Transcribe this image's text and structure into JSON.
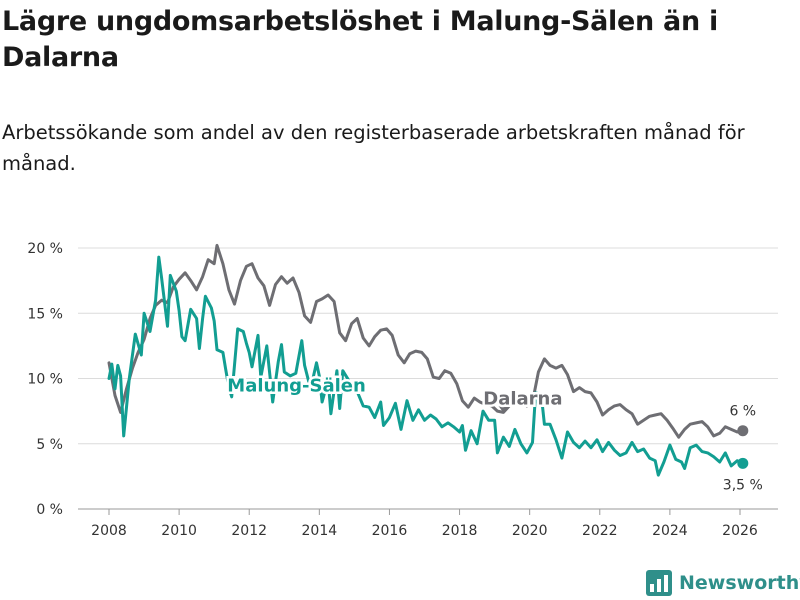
{
  "title": "Lägre ungdomsarbetslöshet i Malung-Sälen än i Dalarna",
  "subtitle": "Arbetssökande som andel av den registerbaserade arbetskraften månad för månad.",
  "brand": {
    "name": "Newsworthy",
    "icon": "bar-chart-icon",
    "color": "#2f8f8a"
  },
  "chart_data": {
    "type": "line",
    "title": "Lägre ungdomsarbetslöshet i Malung-Sälen än i Dalarna",
    "xlabel": "",
    "ylabel": "",
    "xlim": [
      2007.5,
      2027.0
    ],
    "ylim": [
      0,
      20
    ],
    "yticks": [
      0,
      5,
      10,
      15,
      20
    ],
    "ytick_labels": [
      "0 %",
      "5 %",
      "10 %",
      "15 %",
      "20 %"
    ],
    "xticks": [
      2008,
      2010,
      2012,
      2014,
      2016,
      2018,
      2020,
      2022,
      2024,
      2026
    ],
    "xtick_labels": [
      "2008",
      "2010",
      "2012",
      "2014",
      "2016",
      "2018",
      "2020",
      "2022",
      "2024",
      "2026"
    ],
    "grid": true,
    "series": [
      {
        "name": "Dalarna",
        "label": "Dalarna",
        "color": "#6e6e73",
        "end_label": "6 %",
        "points": [
          [
            2008.0,
            11.2
          ],
          [
            2008.17,
            8.7
          ],
          [
            2008.33,
            7.4
          ],
          [
            2008.5,
            9.2
          ],
          [
            2008.67,
            10.8
          ],
          [
            2008.83,
            12.0
          ],
          [
            2009.0,
            13.0
          ],
          [
            2009.17,
            14.6
          ],
          [
            2009.33,
            15.6
          ],
          [
            2009.5,
            16.0
          ],
          [
            2009.67,
            15.8
          ],
          [
            2009.83,
            17.0
          ],
          [
            2010.0,
            17.6
          ],
          [
            2010.17,
            18.1
          ],
          [
            2010.33,
            17.5
          ],
          [
            2010.5,
            16.8
          ],
          [
            2010.67,
            17.8
          ],
          [
            2010.83,
            19.1
          ],
          [
            2011.0,
            18.8
          ],
          [
            2011.08,
            20.2
          ],
          [
            2011.25,
            18.8
          ],
          [
            2011.42,
            16.8
          ],
          [
            2011.58,
            15.7
          ],
          [
            2011.75,
            17.5
          ],
          [
            2011.92,
            18.6
          ],
          [
            2012.08,
            18.8
          ],
          [
            2012.25,
            17.7
          ],
          [
            2012.42,
            17.1
          ],
          [
            2012.58,
            15.6
          ],
          [
            2012.75,
            17.2
          ],
          [
            2012.92,
            17.8
          ],
          [
            2013.08,
            17.3
          ],
          [
            2013.25,
            17.7
          ],
          [
            2013.42,
            16.6
          ],
          [
            2013.58,
            14.8
          ],
          [
            2013.75,
            14.3
          ],
          [
            2013.92,
            15.9
          ],
          [
            2014.08,
            16.1
          ],
          [
            2014.25,
            16.4
          ],
          [
            2014.42,
            15.9
          ],
          [
            2014.58,
            13.5
          ],
          [
            2014.75,
            12.9
          ],
          [
            2014.92,
            14.2
          ],
          [
            2015.08,
            14.6
          ],
          [
            2015.25,
            13.1
          ],
          [
            2015.42,
            12.5
          ],
          [
            2015.58,
            13.2
          ],
          [
            2015.75,
            13.7
          ],
          [
            2015.92,
            13.8
          ],
          [
            2016.08,
            13.3
          ],
          [
            2016.25,
            11.8
          ],
          [
            2016.42,
            11.2
          ],
          [
            2016.58,
            11.9
          ],
          [
            2016.75,
            12.1
          ],
          [
            2016.92,
            12.0
          ],
          [
            2017.08,
            11.5
          ],
          [
            2017.25,
            10.1
          ],
          [
            2017.42,
            10.0
          ],
          [
            2017.58,
            10.6
          ],
          [
            2017.75,
            10.4
          ],
          [
            2017.92,
            9.6
          ],
          [
            2018.08,
            8.3
          ],
          [
            2018.25,
            7.8
          ],
          [
            2018.42,
            8.5
          ],
          [
            2018.58,
            8.2
          ],
          [
            2018.75,
            8.0
          ],
          [
            2018.92,
            7.9
          ],
          [
            2019.08,
            7.5
          ],
          [
            2019.25,
            7.4
          ],
          [
            2019.42,
            7.9
          ],
          [
            2019.58,
            8.4
          ],
          [
            2019.75,
            8.6
          ],
          [
            2019.92,
            7.9
          ],
          [
            2020.08,
            8.2
          ],
          [
            2020.25,
            10.5
          ],
          [
            2020.42,
            11.5
          ],
          [
            2020.58,
            11.0
          ],
          [
            2020.75,
            10.8
          ],
          [
            2020.92,
            11.0
          ],
          [
            2021.08,
            10.3
          ],
          [
            2021.25,
            9.0
          ],
          [
            2021.42,
            9.3
          ],
          [
            2021.58,
            9.0
          ],
          [
            2021.75,
            8.9
          ],
          [
            2021.92,
            8.2
          ],
          [
            2022.08,
            7.2
          ],
          [
            2022.25,
            7.6
          ],
          [
            2022.42,
            7.9
          ],
          [
            2022.58,
            8.0
          ],
          [
            2022.75,
            7.6
          ],
          [
            2022.92,
            7.3
          ],
          [
            2023.08,
            6.5
          ],
          [
            2023.25,
            6.8
          ],
          [
            2023.42,
            7.1
          ],
          [
            2023.58,
            7.2
          ],
          [
            2023.75,
            7.3
          ],
          [
            2023.92,
            6.8
          ],
          [
            2024.08,
            6.2
          ],
          [
            2024.25,
            5.5
          ],
          [
            2024.42,
            6.1
          ],
          [
            2024.58,
            6.5
          ],
          [
            2024.75,
            6.6
          ],
          [
            2024.92,
            6.7
          ],
          [
            2025.08,
            6.3
          ],
          [
            2025.25,
            5.6
          ],
          [
            2025.42,
            5.8
          ],
          [
            2025.58,
            6.3
          ],
          [
            2025.75,
            6.1
          ],
          [
            2025.92,
            5.9
          ],
          [
            2026.08,
            6.0
          ]
        ]
      },
      {
        "name": "Malung-Sälen",
        "label": "Malung-Sälen",
        "color": "#129e92",
        "end_label": "3,5 %",
        "points": [
          [
            2008.0,
            10.0
          ],
          [
            2008.08,
            11.1
          ],
          [
            2008.17,
            9.2
          ],
          [
            2008.25,
            11.0
          ],
          [
            2008.33,
            10.2
          ],
          [
            2008.42,
            5.6
          ],
          [
            2008.58,
            10.0
          ],
          [
            2008.75,
            13.4
          ],
          [
            2008.92,
            11.8
          ],
          [
            2009.0,
            15.0
          ],
          [
            2009.17,
            13.6
          ],
          [
            2009.33,
            16.0
          ],
          [
            2009.42,
            19.3
          ],
          [
            2009.5,
            17.7
          ],
          [
            2009.67,
            14.0
          ],
          [
            2009.75,
            17.9
          ],
          [
            2009.92,
            16.7
          ],
          [
            2010.0,
            15.2
          ],
          [
            2010.08,
            13.2
          ],
          [
            2010.17,
            12.9
          ],
          [
            2010.33,
            15.3
          ],
          [
            2010.5,
            14.6
          ],
          [
            2010.58,
            12.3
          ],
          [
            2010.67,
            14.6
          ],
          [
            2010.75,
            16.3
          ],
          [
            2010.92,
            15.4
          ],
          [
            2011.0,
            14.4
          ],
          [
            2011.08,
            12.2
          ],
          [
            2011.25,
            12.0
          ],
          [
            2011.33,
            10.7
          ],
          [
            2011.42,
            9.3
          ],
          [
            2011.5,
            8.6
          ],
          [
            2011.67,
            13.8
          ],
          [
            2011.83,
            13.6
          ],
          [
            2011.92,
            12.7
          ],
          [
            2012.0,
            12.0
          ],
          [
            2012.08,
            10.9
          ],
          [
            2012.25,
            13.3
          ],
          [
            2012.33,
            10.1
          ],
          [
            2012.5,
            12.5
          ],
          [
            2012.67,
            8.2
          ],
          [
            2012.83,
            11.3
          ],
          [
            2012.92,
            12.6
          ],
          [
            2013.0,
            10.5
          ],
          [
            2013.17,
            10.2
          ],
          [
            2013.33,
            10.4
          ],
          [
            2013.5,
            12.9
          ],
          [
            2013.58,
            11.0
          ],
          [
            2013.75,
            9.2
          ],
          [
            2013.92,
            11.2
          ],
          [
            2014.0,
            10.2
          ],
          [
            2014.08,
            8.2
          ],
          [
            2014.25,
            9.9
          ],
          [
            2014.33,
            7.3
          ],
          [
            2014.5,
            10.6
          ],
          [
            2014.58,
            7.7
          ],
          [
            2014.67,
            10.6
          ],
          [
            2014.83,
            9.9
          ],
          [
            2014.92,
            9.0
          ],
          [
            2015.08,
            9.0
          ],
          [
            2015.25,
            7.9
          ],
          [
            2015.42,
            7.8
          ],
          [
            2015.58,
            7.0
          ],
          [
            2015.75,
            8.2
          ],
          [
            2015.83,
            6.4
          ],
          [
            2016.0,
            7.0
          ],
          [
            2016.17,
            8.1
          ],
          [
            2016.33,
            6.1
          ],
          [
            2016.5,
            8.3
          ],
          [
            2016.67,
            6.8
          ],
          [
            2016.83,
            7.6
          ],
          [
            2017.0,
            6.8
          ],
          [
            2017.17,
            7.2
          ],
          [
            2017.33,
            6.9
          ],
          [
            2017.5,
            6.3
          ],
          [
            2017.67,
            6.6
          ],
          [
            2017.83,
            6.3
          ],
          [
            2018.0,
            5.9
          ],
          [
            2018.08,
            6.4
          ],
          [
            2018.17,
            4.5
          ],
          [
            2018.33,
            6.0
          ],
          [
            2018.5,
            5.0
          ],
          [
            2018.67,
            7.5
          ],
          [
            2018.83,
            6.8
          ],
          [
            2019.0,
            6.8
          ],
          [
            2019.08,
            4.3
          ],
          [
            2019.25,
            5.5
          ],
          [
            2019.42,
            4.8
          ],
          [
            2019.58,
            6.1
          ],
          [
            2019.75,
            5.0
          ],
          [
            2019.92,
            4.3
          ],
          [
            2020.08,
            5.1
          ],
          [
            2020.17,
            8.9
          ],
          [
            2020.33,
            8.8
          ],
          [
            2020.42,
            6.5
          ],
          [
            2020.58,
            6.5
          ],
          [
            2020.75,
            5.3
          ],
          [
            2020.92,
            3.9
          ],
          [
            2021.08,
            5.9
          ],
          [
            2021.25,
            5.1
          ],
          [
            2021.42,
            4.7
          ],
          [
            2021.58,
            5.2
          ],
          [
            2021.75,
            4.7
          ],
          [
            2021.92,
            5.3
          ],
          [
            2022.08,
            4.4
          ],
          [
            2022.25,
            5.1
          ],
          [
            2022.42,
            4.5
          ],
          [
            2022.58,
            4.1
          ],
          [
            2022.75,
            4.3
          ],
          [
            2022.92,
            5.1
          ],
          [
            2023.08,
            4.4
          ],
          [
            2023.25,
            4.6
          ],
          [
            2023.42,
            3.9
          ],
          [
            2023.58,
            3.7
          ],
          [
            2023.67,
            2.6
          ],
          [
            2023.83,
            3.6
          ],
          [
            2024.0,
            4.9
          ],
          [
            2024.17,
            3.8
          ],
          [
            2024.33,
            3.6
          ],
          [
            2024.42,
            3.1
          ],
          [
            2024.58,
            4.7
          ],
          [
            2024.75,
            4.9
          ],
          [
            2024.92,
            4.4
          ],
          [
            2025.08,
            4.3
          ],
          [
            2025.25,
            4.0
          ],
          [
            2025.42,
            3.6
          ],
          [
            2025.58,
            4.3
          ],
          [
            2025.75,
            3.3
          ],
          [
            2025.92,
            3.7
          ],
          [
            2026.08,
            3.5
          ]
        ]
      }
    ]
  }
}
